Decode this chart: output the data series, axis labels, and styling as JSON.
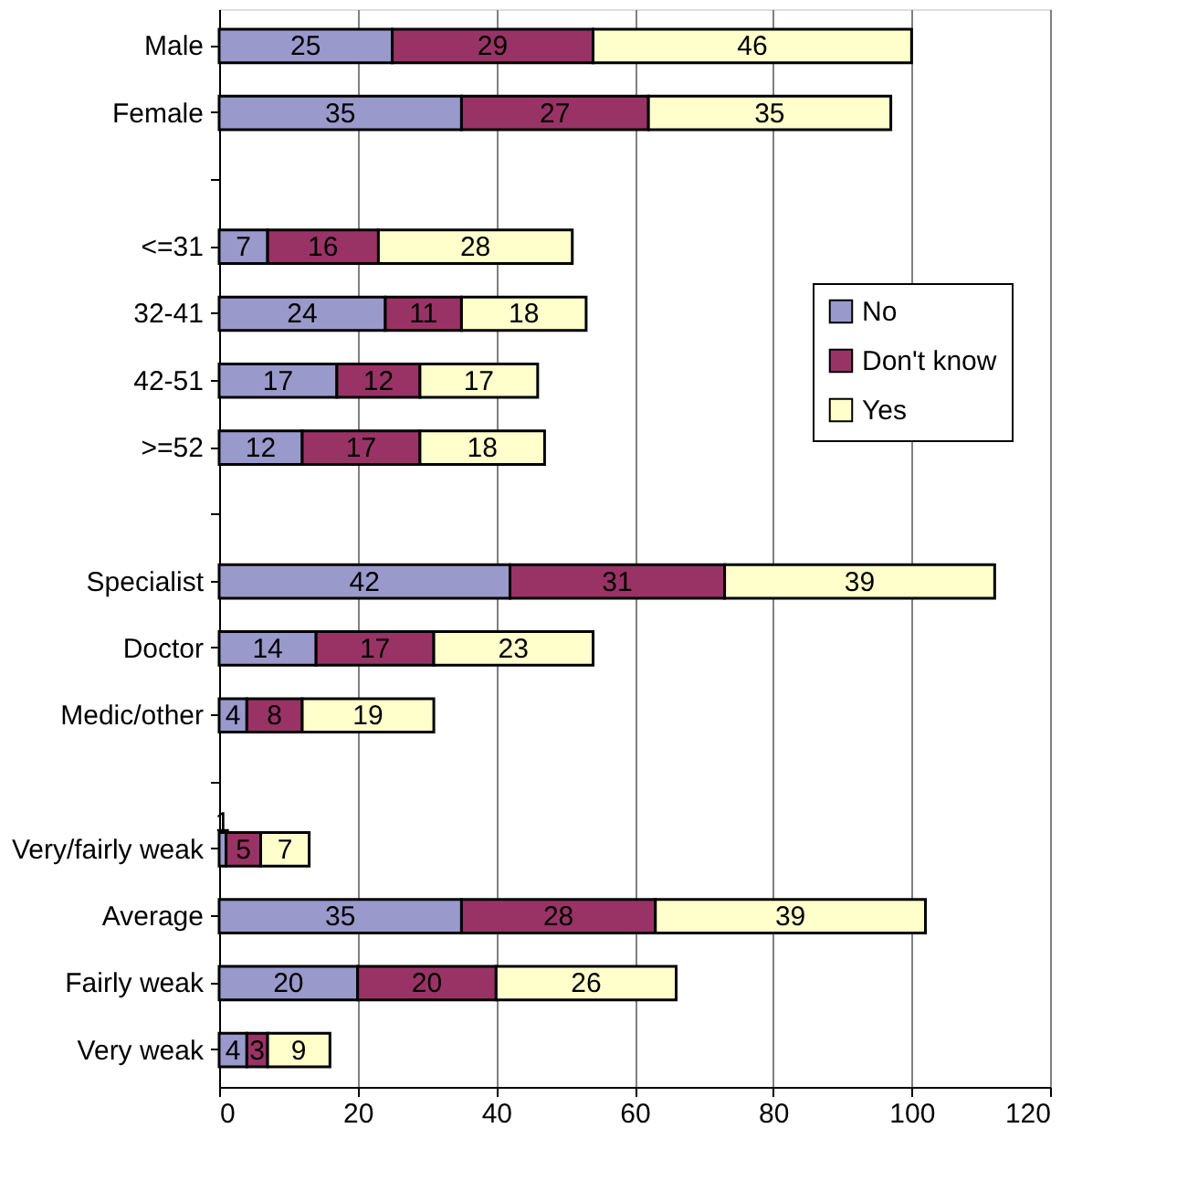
{
  "chart_data": {
    "type": "bar",
    "orientation": "horizontal",
    "stacked": true,
    "data_labels": true,
    "categories": [
      "Male",
      "Female",
      null,
      "<=31",
      "32-41",
      "42-51",
      ">=52",
      null,
      "Specialist",
      "Doctor",
      "Medic/other",
      null,
      "Very/fairly weak",
      "Average",
      "Fairly weak",
      "Very weak"
    ],
    "series": [
      {
        "name": "No",
        "color": "#9999cc",
        "values": [
          25,
          35,
          null,
          7,
          24,
          17,
          12,
          null,
          42,
          14,
          4,
          null,
          1,
          35,
          20,
          4
        ]
      },
      {
        "name": "Don't know",
        "color": "#993366",
        "values": [
          29,
          27,
          null,
          16,
          11,
          12,
          17,
          null,
          31,
          17,
          8,
          null,
          5,
          28,
          20,
          3
        ]
      },
      {
        "name": "Yes",
        "color": "#ffffcc",
        "values": [
          46,
          35,
          null,
          28,
          18,
          17,
          18,
          null,
          39,
          23,
          19,
          null,
          7,
          39,
          26,
          9
        ]
      }
    ],
    "xlim": [
      0,
      120
    ],
    "xticks": [
      0,
      20,
      40,
      60,
      80,
      100,
      120
    ],
    "grid": "x",
    "legend": "right"
  }
}
